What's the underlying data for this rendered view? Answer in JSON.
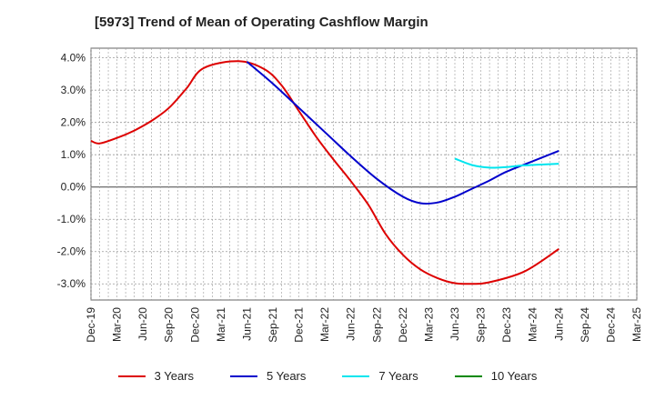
{
  "chart_data": {
    "type": "line",
    "title": "[5973]  Trend of Mean of Operating Cashflow Margin",
    "xlabel": "",
    "ylabel": "",
    "categories": [
      "Dec-19",
      "Mar-20",
      "Jun-20",
      "Sep-20",
      "Dec-20",
      "Mar-21",
      "Jun-21",
      "Sep-21",
      "Dec-21",
      "Mar-22",
      "Jun-22",
      "Sep-22",
      "Dec-22",
      "Mar-23",
      "Jun-23",
      "Sep-23",
      "Dec-23",
      "Mar-24",
      "Jun-24",
      "Sep-24",
      "Dec-24",
      "Mar-25"
    ],
    "ylim": [
      -3.5,
      4.3
    ],
    "yticks": [
      -3.0,
      -2.0,
      -1.0,
      0.0,
      1.0,
      2.0,
      3.0,
      4.0
    ],
    "ytick_labels": [
      "-3.0%",
      "-2.0%",
      "-1.0%",
      "0.0%",
      "1.0%",
      "2.0%",
      "3.0%",
      "4.0%"
    ],
    "grid": true,
    "legend_position": "bottom",
    "series": [
      {
        "name": "3 Years",
        "color": "#dd0000",
        "values": [
          1.43,
          1.35,
          1.52,
          1.75,
          2.05,
          2.45,
          3.05,
          3.68,
          3.9,
          3.65,
          3.15,
          2.35,
          1.55,
          0.85,
          0.18,
          -0.55,
          -1.45,
          -2.1,
          -2.55,
          -2.82,
          -2.98,
          -3.0,
          -2.95,
          -2.62,
          -1.92
        ],
        "x_offsets": [
          0,
          0.33,
          1,
          1.67,
          2.33,
          3,
          3.67,
          4.33,
          5.67,
          6.67,
          7.33,
          8,
          8.67,
          9.33,
          10,
          10.67,
          11.33,
          12,
          12.67,
          13.33,
          14,
          14.67,
          15.33,
          16.67,
          18
        ]
      },
      {
        "name": "5 Years",
        "color": "#0000cc",
        "values": [
          3.88,
          3.2,
          2.45,
          1.7,
          0.95,
          0.25,
          -0.3,
          -0.5,
          -0.48,
          -0.3,
          -0.05,
          0.2,
          0.48,
          0.8,
          1.12
        ],
        "x_offsets": [
          6,
          7,
          8,
          9,
          10,
          11,
          12,
          12.67,
          13.33,
          14,
          14.67,
          15.33,
          16,
          17,
          18
        ]
      },
      {
        "name": "7 Years",
        "color": "#00e5ee",
        "values": [
          0.88,
          0.68,
          0.6,
          0.62,
          0.67,
          0.72
        ],
        "x_offsets": [
          14,
          14.67,
          15.33,
          16,
          16.67,
          18
        ]
      },
      {
        "name": "10 Years",
        "color": "#008800",
        "values": [],
        "x_offsets": []
      }
    ]
  }
}
